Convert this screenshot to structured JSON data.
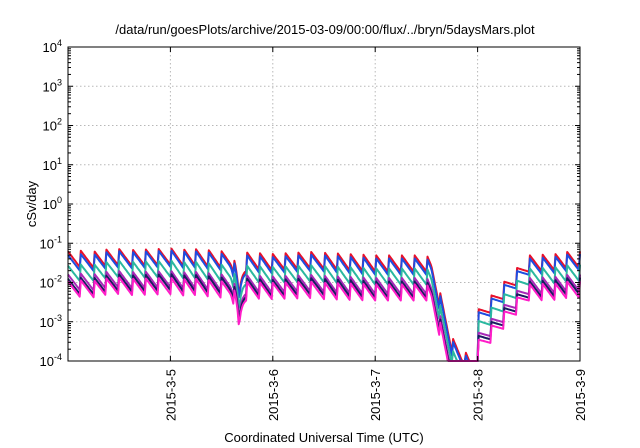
{
  "chart_data": {
    "type": "line",
    "title": "/data/run/goesPlots/archive/2015-03-09/00:00/flux/../bryn/5daysMars.plot",
    "xlabel": "Coordinated Universal Time (UTC)",
    "ylabel": "cSv/day",
    "y_scale": "log",
    "ylim": [
      0.0001,
      10000
    ],
    "y_ticks": [
      {
        "base": "10",
        "exp": "-4"
      },
      {
        "base": "10",
        "exp": "-3"
      },
      {
        "base": "10",
        "exp": "-2"
      },
      {
        "base": "10",
        "exp": "-1"
      },
      {
        "base": "10",
        "exp": "0"
      },
      {
        "base": "10",
        "exp": "1"
      },
      {
        "base": "10",
        "exp": "2"
      },
      {
        "base": "10",
        "exp": "3"
      },
      {
        "base": "10",
        "exp": "4"
      }
    ],
    "xlim": [
      "2015-03-04 00:00",
      "2015-03-09 00:00"
    ],
    "x_ticks": [
      "2015-3-5",
      "2015-3-6",
      "2015-3-7",
      "2015-3-8",
      "2015-3-9"
    ],
    "grid": true,
    "x_days": [
      "2015-03-04",
      "2015-03-04.5",
      "2015-03-05",
      "2015-03-05.5",
      "2015-03-06",
      "2015-03-06.5",
      "2015-03-07",
      "2015-03-07.5",
      "2015-03-08",
      "2015-03-08.5",
      "2015-03-09"
    ],
    "series": [
      {
        "color": "#e8102a",
        "values": [
          0.035,
          0.04,
          0.045,
          0.035,
          0.03,
          0.035,
          0.03,
          0.03,
          0.0012,
          0.03,
          0.035
        ]
      },
      {
        "color": "#1e4de0",
        "values": [
          0.028,
          0.035,
          0.04,
          0.03,
          0.025,
          0.03,
          0.025,
          0.025,
          0.001,
          0.025,
          0.03
        ]
      },
      {
        "color": "#2bb8a0",
        "values": [
          0.015,
          0.02,
          0.022,
          0.016,
          0.014,
          0.016,
          0.014,
          0.014,
          0.0006,
          0.014,
          0.016
        ]
      },
      {
        "color": "#a828b8",
        "values": [
          0.009,
          0.011,
          0.012,
          0.009,
          0.008,
          0.009,
          0.008,
          0.008,
          0.0003,
          0.008,
          0.009
        ]
      },
      {
        "color": "#1a1a60",
        "values": [
          0.007,
          0.009,
          0.01,
          0.0075,
          0.0065,
          0.0075,
          0.0065,
          0.0065,
          0.00025,
          0.0065,
          0.0075
        ]
      },
      {
        "color": "#ff1dc8",
        "values": [
          0.006,
          0.0075,
          0.008,
          0.006,
          0.0055,
          0.006,
          0.0055,
          0.0055,
          0.0002,
          0.0055,
          0.006
        ]
      }
    ]
  }
}
